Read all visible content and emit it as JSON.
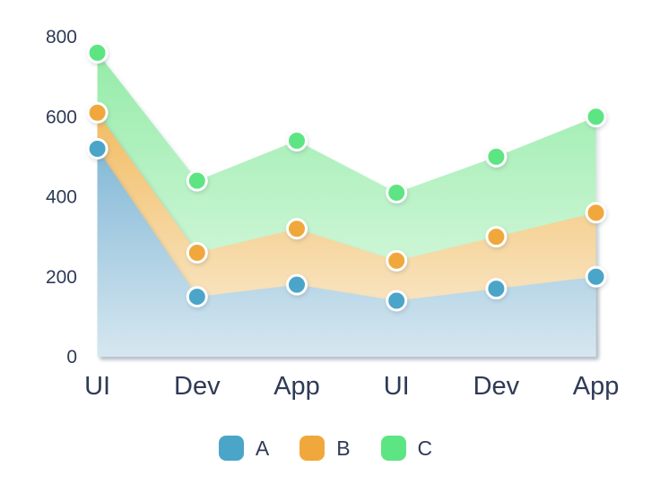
{
  "chart_data": {
    "type": "area",
    "categories": [
      "UI",
      "Dev",
      "App",
      "UI",
      "Dev",
      "App"
    ],
    "series": [
      {
        "name": "A",
        "values": [
          520,
          150,
          180,
          140,
          170,
          200
        ],
        "color": "#4BA5C8",
        "gradient_top": "#84B9D7",
        "gradient_bottom": "#D6E7F0"
      },
      {
        "name": "B",
        "values": [
          610,
          260,
          320,
          240,
          300,
          360
        ],
        "color": "#F0A83D",
        "gradient_top": "#F2BC62",
        "gradient_bottom": "#FAEFDA"
      },
      {
        "name": "C",
        "values": [
          760,
          440,
          540,
          410,
          500,
          600
        ],
        "color": "#5DE584",
        "gradient_top": "#95EBA8",
        "gradient_bottom": "#E7FBEB"
      }
    ],
    "yticks": [
      0,
      200,
      400,
      600,
      800
    ],
    "ylim": [
      0,
      800
    ],
    "grid": false,
    "legend_position": "bottom",
    "paint_order": [
      "C",
      "B",
      "A"
    ],
    "marker": {
      "radius": 10.5,
      "ring_color": "#FFFFFF"
    },
    "text_color": "#2E3A56",
    "background": "#FFFFFF"
  }
}
